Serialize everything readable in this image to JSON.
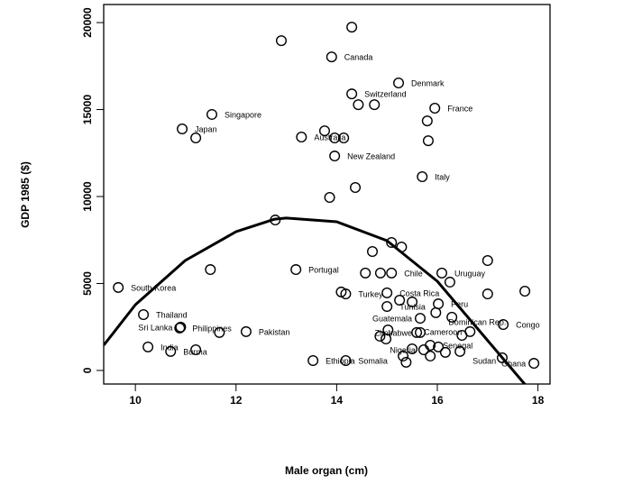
{
  "chart_data": {
    "type": "scatter",
    "title": "",
    "xlabel": "Male organ (cm)",
    "ylabel": "GDP 1985 ($)",
    "xlim": [
      9.37,
      18.24
    ],
    "ylim": [
      -780,
      21040
    ],
    "xticks": [
      10,
      12,
      14,
      16,
      18
    ],
    "yticks": [
      0,
      5000,
      10000,
      15000,
      20000
    ],
    "grid": false,
    "points": [
      {
        "x": 9.66,
        "y": 4770,
        "label": "South Korea"
      },
      {
        "x": 10.16,
        "y": 3210,
        "label": "Thailand"
      },
      {
        "x": 10.25,
        "y": 1350,
        "label": "India"
      },
      {
        "x": 10.7,
        "y": 1090,
        "label": "Burma"
      },
      {
        "x": 10.88,
        "y": 2440,
        "label": "Philippines"
      },
      {
        "x": 10.9,
        "y": 2490,
        "label": "Sri Lanka"
      },
      {
        "x": 11.2,
        "y": 1190,
        "label": ""
      },
      {
        "x": 11.67,
        "y": 2180,
        "label": ""
      },
      {
        "x": 11.49,
        "y": 5800,
        "label": ""
      },
      {
        "x": 12.2,
        "y": 2230,
        "label": "Pakistan"
      },
      {
        "x": 10.93,
        "y": 13890,
        "label": "Japan"
      },
      {
        "x": 11.2,
        "y": 13370,
        "label": ""
      },
      {
        "x": 11.52,
        "y": 14720,
        "label": "Singapore"
      },
      {
        "x": 12.9,
        "y": 18960,
        "label": ""
      },
      {
        "x": 12.78,
        "y": 8650,
        "label": ""
      },
      {
        "x": 13.19,
        "y": 5800,
        "label": "Portugal"
      },
      {
        "x": 13.3,
        "y": 13420,
        "label": "Australia"
      },
      {
        "x": 13.76,
        "y": 13780,
        "label": ""
      },
      {
        "x": 13.96,
        "y": 13370,
        "label": ""
      },
      {
        "x": 14.14,
        "y": 13370,
        "label": ""
      },
      {
        "x": 13.96,
        "y": 12330,
        "label": "New Zealand"
      },
      {
        "x": 13.9,
        "y": 18030,
        "label": "Canada"
      },
      {
        "x": 14.3,
        "y": 19740,
        "label": ""
      },
      {
        "x": 14.3,
        "y": 15900,
        "label": "Switzerland"
      },
      {
        "x": 14.43,
        "y": 15280,
        "label": ""
      },
      {
        "x": 14.75,
        "y": 15280,
        "label": ""
      },
      {
        "x": 15.23,
        "y": 16530,
        "label": "Denmark"
      },
      {
        "x": 15.95,
        "y": 15080,
        "label": "France"
      },
      {
        "x": 15.8,
        "y": 14350,
        "label": ""
      },
      {
        "x": 15.82,
        "y": 13210,
        "label": ""
      },
      {
        "x": 15.7,
        "y": 11140,
        "label": "Italy"
      },
      {
        "x": 14.37,
        "y": 10520,
        "label": ""
      },
      {
        "x": 13.86,
        "y": 9950,
        "label": ""
      },
      {
        "x": 14.71,
        "y": 6840,
        "label": ""
      },
      {
        "x": 15.09,
        "y": 7360,
        "label": ""
      },
      {
        "x": 15.29,
        "y": 7100,
        "label": ""
      },
      {
        "x": 14.57,
        "y": 5600,
        "label": ""
      },
      {
        "x": 14.87,
        "y": 5600,
        "label": ""
      },
      {
        "x": 15.09,
        "y": 5600,
        "label": "Chile"
      },
      {
        "x": 16.09,
        "y": 5600,
        "label": "Uruguay"
      },
      {
        "x": 16.25,
        "y": 5080,
        "label": ""
      },
      {
        "x": 17.0,
        "y": 6320,
        "label": ""
      },
      {
        "x": 17.0,
        "y": 4400,
        "label": ""
      },
      {
        "x": 17.74,
        "y": 4560,
        "label": ""
      },
      {
        "x": 14.09,
        "y": 4510,
        "label": ""
      },
      {
        "x": 14.18,
        "y": 4400,
        "label": "Turkey"
      },
      {
        "x": 15.0,
        "y": 4460,
        "label": "Costa Rica"
      },
      {
        "x": 15.25,
        "y": 4040,
        "label": ""
      },
      {
        "x": 15.5,
        "y": 3940,
        "label": ""
      },
      {
        "x": 15.0,
        "y": 3680,
        "label": "Tunisia"
      },
      {
        "x": 16.02,
        "y": 3830,
        "label": "Peru"
      },
      {
        "x": 15.97,
        "y": 3320,
        "label": "Dominican Rep."
      },
      {
        "x": 16.29,
        "y": 3060,
        "label": ""
      },
      {
        "x": 15.66,
        "y": 3000,
        "label": "Guatemala"
      },
      {
        "x": 17.31,
        "y": 2640,
        "label": "Congo"
      },
      {
        "x": 16.65,
        "y": 2230,
        "label": "Cameroon"
      },
      {
        "x": 16.49,
        "y": 2020,
        "label": ""
      },
      {
        "x": 15.59,
        "y": 2180,
        "label": ""
      },
      {
        "x": 15.66,
        "y": 2180,
        "label": "Zimbabwe"
      },
      {
        "x": 15.02,
        "y": 2330,
        "label": ""
      },
      {
        "x": 14.86,
        "y": 1970,
        "label": ""
      },
      {
        "x": 14.98,
        "y": 1810,
        "label": ""
      },
      {
        "x": 15.86,
        "y": 1450,
        "label": "Senegal"
      },
      {
        "x": 16.02,
        "y": 1350,
        "label": ""
      },
      {
        "x": 15.5,
        "y": 1240,
        "label": ""
      },
      {
        "x": 15.73,
        "y": 1190,
        "label": "Nigeria"
      },
      {
        "x": 16.16,
        "y": 1040,
        "label": ""
      },
      {
        "x": 16.45,
        "y": 1090,
        "label": "Sudan"
      },
      {
        "x": 15.86,
        "y": 830,
        "label": ""
      },
      {
        "x": 17.29,
        "y": 730,
        "label": ""
      },
      {
        "x": 17.92,
        "y": 410,
        "label": "Ghana"
      },
      {
        "x": 15.32,
        "y": 830,
        "label": ""
      },
      {
        "x": 15.38,
        "y": 470,
        "label": ""
      },
      {
        "x": 13.53,
        "y": 570,
        "label": "Ethiopia"
      },
      {
        "x": 14.18,
        "y": 570,
        "label": "Somalia"
      }
    ],
    "fit_line": [
      {
        "x": 9.37,
        "y": 1450
      },
      {
        "x": 10.0,
        "y": 3780
      },
      {
        "x": 10.99,
        "y": 6320
      },
      {
        "x": 12.0,
        "y": 7980
      },
      {
        "x": 12.77,
        "y": 8700
      },
      {
        "x": 13.0,
        "y": 8760
      },
      {
        "x": 14.0,
        "y": 8550
      },
      {
        "x": 15.0,
        "y": 7460
      },
      {
        "x": 16.0,
        "y": 5130
      },
      {
        "x": 16.99,
        "y": 1760
      },
      {
        "x": 17.8,
        "y": -1000
      }
    ]
  }
}
